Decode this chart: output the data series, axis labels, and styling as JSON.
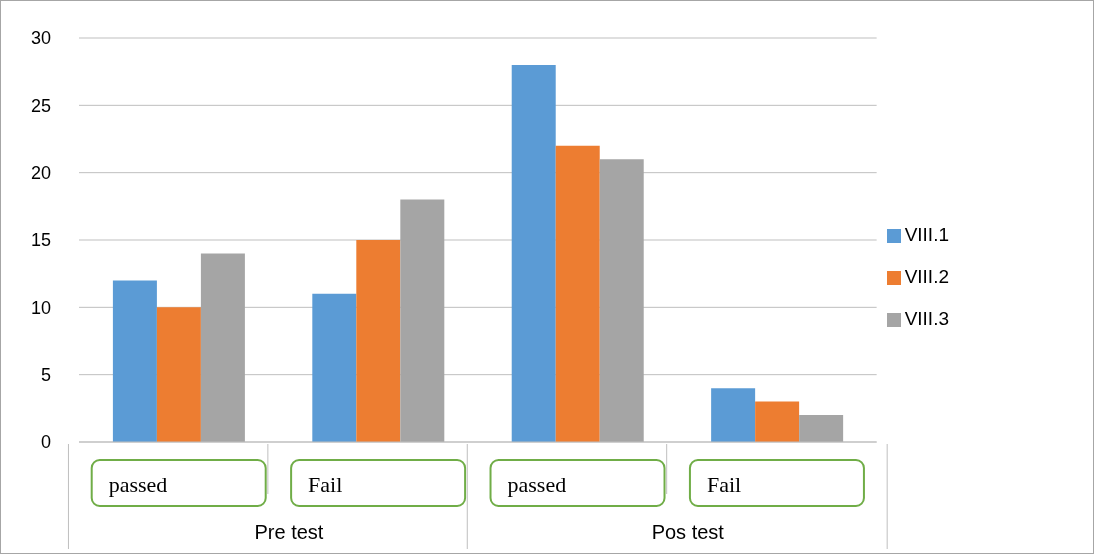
{
  "chart_data": {
    "type": "bar",
    "categories": [
      "passed",
      "Fail",
      "passed",
      "Fail"
    ],
    "series": [
      {
        "name": "VIII.1",
        "color": "#5b9bd5",
        "values": [
          12,
          11,
          28,
          4
        ]
      },
      {
        "name": "VIII.2",
        "color": "#ed7d31",
        "values": [
          10,
          15,
          22,
          3
        ]
      },
      {
        "name": "VIII.3",
        "color": "#a5a5a5",
        "values": [
          14,
          18,
          21,
          2
        ]
      }
    ],
    "annotations": [
      "Pre test",
      "Pos test"
    ],
    "ylim": [
      0,
      30
    ],
    "yticks": [
      0,
      5,
      10,
      15,
      20,
      25,
      30
    ],
    "grid": "y",
    "legend": "right"
  }
}
